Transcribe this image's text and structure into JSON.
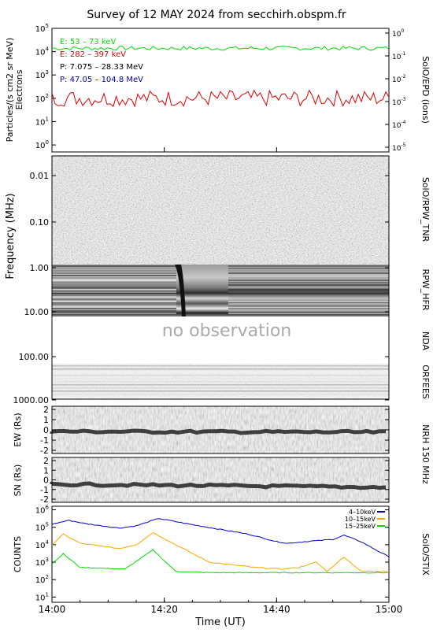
{
  "title": "Survey of 12 MAY 2024 from secchirh.obspm.fr",
  "chart_data": [
    {
      "type": "line",
      "panel": "SolO/EPD (ions)",
      "ylabel": "Particles/(s cm2 sr MeV)",
      "ylabel2": "Electrons",
      "yscale": "log",
      "ylim": [
        0.5,
        100000
      ],
      "yticks": [
        "10^0",
        "10^1",
        "10^2",
        "10^3",
        "10^4",
        "10^5"
      ],
      "y2lim": [
        1e-05,
        1
      ],
      "y2ticks": [
        "10^-5",
        "10^-4",
        "10^-3",
        "10^-2",
        "10^-1",
        "10^0"
      ],
      "legend": [
        {
          "name": "E: 53 – 73 keV",
          "color": "#00dd00"
        },
        {
          "name": "E: 282 – 397 keV",
          "color": "#dd0000"
        },
        {
          "name": "P: 7.075 – 28.33 MeV",
          "color": "#000000"
        },
        {
          "name": "P: 47.05 – 104.8 MeV",
          "color": "#0000cc"
        }
      ],
      "series": [
        {
          "name": "E: 53 – 73 keV",
          "color": "#00dd00",
          "level": 14000
        },
        {
          "name": "E: 282 – 397 keV",
          "color": "#dd0000",
          "level": 100
        }
      ]
    },
    {
      "type": "heatmap",
      "panel": "SolO/RPW_TNR",
      "ylabel": "Frequency (MHz)",
      "yticks": [
        "0.01",
        "0.10",
        "1.00",
        "10.00",
        "100.00",
        "1000.00"
      ]
    },
    {
      "type": "heatmap",
      "panel": "RPW_HFR"
    },
    {
      "type": "heatmap",
      "panel": "NDA",
      "annotation": "no observation"
    },
    {
      "type": "heatmap",
      "panel": "ORFEES"
    },
    {
      "type": "heatmap",
      "panel": "NRH 150 MHz",
      "subpanels": [
        {
          "ylabel": "EW (Rs)",
          "yticks": [
            "2",
            "1",
            "0",
            "-1",
            "-2"
          ]
        },
        {
          "ylabel": "SN (Rs)",
          "yticks": [
            "2",
            "1",
            "0",
            "-1",
            "-2"
          ]
        }
      ]
    },
    {
      "type": "line",
      "panel": "SolO/STIX",
      "ylabel": "COUNTS",
      "yscale": "log",
      "ylim": [
        10,
        1000000
      ],
      "yticks": [
        "10^1",
        "10^2",
        "10^3",
        "10^4",
        "10^5",
        "10^6"
      ],
      "legend": [
        {
          "name": "4–10keV",
          "color": "#0000cc"
        },
        {
          "name": "10–15keV",
          "color": "#ffa500"
        },
        {
          "name": "15–25keV",
          "color": "#00dd00"
        }
      ],
      "series": [
        {
          "name": "4–10keV",
          "color": "#0000cc",
          "points": [
            [
              0,
              150000.0
            ],
            [
              3,
              250000.0
            ],
            [
              6,
              160000.0
            ],
            [
              12,
              90000.0
            ],
            [
              15,
              120000.0
            ],
            [
              19,
              320000.0
            ],
            [
              24,
              160000.0
            ],
            [
              35,
              40000.0
            ],
            [
              40,
              15000.0
            ],
            [
              42,
              12000.0
            ],
            [
              45,
              15000.0
            ],
            [
              50,
              20000.0
            ],
            [
              52,
              35000.0
            ],
            [
              55,
              15000.0
            ],
            [
              60,
              2000.0
            ]
          ]
        },
        {
          "name": "10–15keV",
          "color": "#ffa500",
          "points": [
            [
              0,
              10000.0
            ],
            [
              2,
              40000.0
            ],
            [
              5,
              12000.0
            ],
            [
              12,
              6000.0
            ],
            [
              15,
              10000.0
            ],
            [
              18,
              50000.0
            ],
            [
              22,
              10000.0
            ],
            [
              28,
              1000.0
            ],
            [
              36,
              500.0
            ],
            [
              41,
              400.0
            ],
            [
              44,
              500.0
            ],
            [
              47,
              1000.0
            ],
            [
              49,
              300.0
            ],
            [
              52,
              2000.0
            ],
            [
              55,
              300.0
            ],
            [
              60,
              300.0
            ]
          ]
        },
        {
          "name": "15–25keV",
          "color": "#00dd00",
          "points": [
            [
              0,
              800.0
            ],
            [
              2,
              3000.0
            ],
            [
              5,
              500.0
            ],
            [
              13,
              400.0
            ],
            [
              18,
              5000.0
            ],
            [
              22,
              300.0
            ],
            [
              28,
              250.0
            ],
            [
              60,
              250.0
            ]
          ]
        }
      ]
    }
  ],
  "xaxis": {
    "label": "Time (UT)",
    "ticks": [
      "14:00",
      "14:20",
      "14:40",
      "15:00"
    ]
  },
  "right_labels": {
    "epd": "SolO/EPD (ions)",
    "tnr": "SolO/RPW_TNR",
    "hfr": "RPW_HFR",
    "nda": "NDA",
    "orfees": "ORFEES",
    "nrh": "NRH 150 MHz",
    "stix": "SolO/STIX"
  }
}
